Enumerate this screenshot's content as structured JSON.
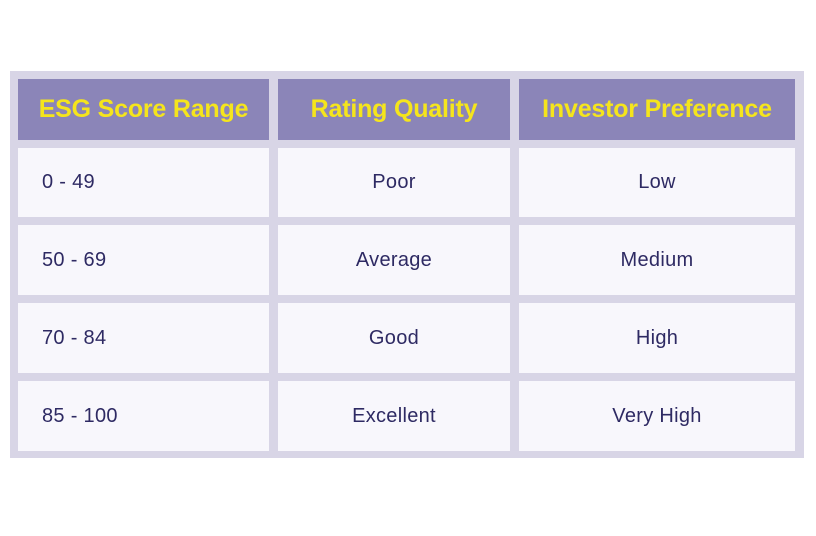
{
  "table": {
    "headers": [
      "ESG Score Range",
      "Rating Quality",
      "Investor Preference"
    ],
    "rows": [
      [
        "0 - 49",
        "Poor",
        "Low"
      ],
      [
        "50 - 69",
        "Average",
        "Medium"
      ],
      [
        "70 - 84",
        "Good",
        "High"
      ],
      [
        "85 - 100",
        "Excellent",
        "Very High"
      ]
    ]
  },
  "colors": {
    "header_bg": "#8b85b8",
    "header_text": "#f5e51c",
    "cell_bg": "#f8f7fc",
    "cell_text": "#2e2a63",
    "border": "#d8d5e6"
  }
}
